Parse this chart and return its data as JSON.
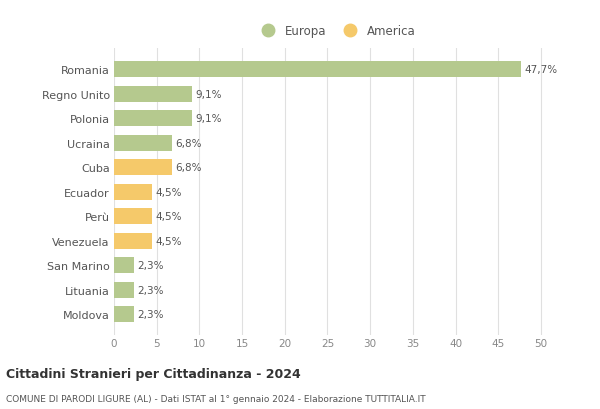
{
  "countries": [
    "Romania",
    "Regno Unito",
    "Polonia",
    "Ucraina",
    "Cuba",
    "Ecuador",
    "Perù",
    "Venezuela",
    "San Marino",
    "Lituania",
    "Moldova"
  ],
  "values": [
    47.7,
    9.1,
    9.1,
    6.8,
    6.8,
    4.5,
    4.5,
    4.5,
    2.3,
    2.3,
    2.3
  ],
  "labels": [
    "47,7%",
    "9,1%",
    "9,1%",
    "6,8%",
    "6,8%",
    "4,5%",
    "4,5%",
    "4,5%",
    "2,3%",
    "2,3%",
    "2,3%"
  ],
  "categories": [
    "Europa",
    "Europa",
    "Europa",
    "Europa",
    "America",
    "America",
    "America",
    "America",
    "Europa",
    "Europa",
    "Europa"
  ],
  "color_europa": "#b5c98e",
  "color_america": "#f5c96a",
  "legend_labels": [
    "Europa",
    "America"
  ],
  "title1": "Cittadini Stranieri per Cittadinanza - 2024",
  "title2": "COMUNE DI PARODI LIGURE (AL) - Dati ISTAT al 1° gennaio 2024 - Elaborazione TUTTITALIA.IT",
  "xlim": [
    0,
    52
  ],
  "xticks": [
    0,
    5,
    10,
    15,
    20,
    25,
    30,
    35,
    40,
    45,
    50
  ],
  "background_color": "#ffffff",
  "grid_color": "#e0e0e0",
  "bar_height": 0.65
}
